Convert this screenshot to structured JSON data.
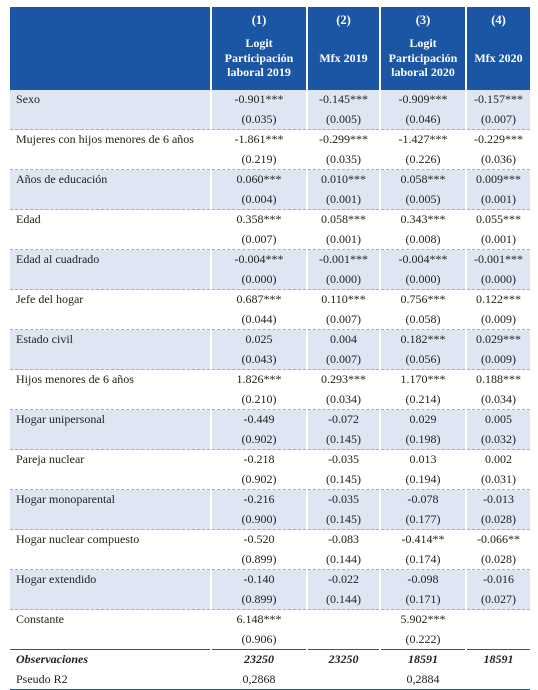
{
  "header": {
    "columns": [
      {
        "number": "(1)",
        "label_lines": [
          "Logit",
          "Participación",
          "laboral 2019"
        ]
      },
      {
        "number": "(2)",
        "label_lines": [
          "Mfx 2019"
        ]
      },
      {
        "number": "(3)",
        "label_lines": [
          "Logit",
          "Participación",
          "laboral 2020"
        ]
      },
      {
        "number": "(4)",
        "label_lines": [
          "Mfx 2020"
        ]
      }
    ]
  },
  "rows": [
    {
      "label": "Sexo",
      "coef": [
        "-0.901***",
        "-0.145***",
        "-0.909***",
        "-0.157***"
      ],
      "se": [
        "(0.035)",
        "(0.005)",
        "(0.046)",
        "(0.007)"
      ]
    },
    {
      "label": "Mujeres con hijos menores de 6 años",
      "coef": [
        "-1.861***",
        "-0.299***",
        "-1.427***",
        "-0.229***"
      ],
      "se": [
        "(0.219)",
        "(0.035)",
        "(0.226)",
        "(0.036)"
      ]
    },
    {
      "label": "Años de educación",
      "coef": [
        "0.060***",
        "0.010***",
        "0.058***",
        "0.009***"
      ],
      "se": [
        "(0.004)",
        "(0.001)",
        "(0.005)",
        "(0.001)"
      ]
    },
    {
      "label": "Edad",
      "coef": [
        "0.358***",
        "0.058***",
        "0.343***",
        "0.055***"
      ],
      "se": [
        "(0.007)",
        "(0.001)",
        "(0.008)",
        "(0.001)"
      ]
    },
    {
      "label": "Edad al cuadrado",
      "coef": [
        "-0.004***",
        "-0.001***",
        "-0.004***",
        "-0.001***"
      ],
      "se": [
        "(0.000)",
        "(0.000)",
        "(0.000)",
        "(0.000)"
      ]
    },
    {
      "label": "Jefe del hogar",
      "coef": [
        "0.687***",
        "0.110***",
        "0.756***",
        "0.122***"
      ],
      "se": [
        "(0.044)",
        "(0.007)",
        "(0.058)",
        "(0.009)"
      ]
    },
    {
      "label": "Estado civil",
      "coef": [
        "0.025",
        "0.004",
        "0.182***",
        "0.029***"
      ],
      "se": [
        "(0.043)",
        "(0.007)",
        "(0.056)",
        "(0.009)"
      ]
    },
    {
      "label": "Hijos menores de 6 años",
      "coef": [
        "1.826***",
        "0.293***",
        "1.170***",
        "0.188***"
      ],
      "se": [
        "(0.210)",
        "(0.034)",
        "(0.214)",
        "(0.034)"
      ]
    },
    {
      "label": "Hogar unipersonal",
      "coef": [
        "-0.449",
        "-0.072",
        "0.029",
        "0.005"
      ],
      "se": [
        "(0.902)",
        "(0.145)",
        "(0.198)",
        "(0.032)"
      ]
    },
    {
      "label": "Pareja nuclear",
      "coef": [
        "-0.218",
        "-0.035",
        "0.013",
        "0.002"
      ],
      "se": [
        "(0.902)",
        "(0.145)",
        "(0.194)",
        "(0.031)"
      ]
    },
    {
      "label": "Hogar monoparental",
      "coef": [
        "-0.216",
        "-0.035",
        "-0.078",
        "-0.013"
      ],
      "se": [
        "(0.900)",
        "(0.145)",
        "(0.177)",
        "(0.028)"
      ]
    },
    {
      "label": "Hogar nuclear compuesto",
      "coef": [
        "-0.520",
        "-0.083",
        "-0.414**",
        "-0.066**"
      ],
      "se": [
        "(0.899)",
        "(0.144)",
        "(0.174)",
        "(0.028)"
      ]
    },
    {
      "label": "Hogar extendido",
      "coef": [
        "-0.140",
        "-0.022",
        "-0.098",
        "-0.016"
      ],
      "se": [
        "(0.899)",
        "(0.144)",
        "(0.171)",
        "(0.027)"
      ]
    },
    {
      "label": "Constante",
      "coef": [
        "6.148***",
        "",
        "5.902***",
        ""
      ],
      "se": [
        "(0.906)",
        "",
        "(0.222)",
        ""
      ]
    }
  ],
  "observations": {
    "label": "Observaciones",
    "values": [
      "23250",
      "23250",
      "18591",
      "18591"
    ]
  },
  "pseudo_r2": {
    "label": "Pseudo R2",
    "values": [
      "0,2868",
      "",
      "0,2884",
      ""
    ]
  }
}
